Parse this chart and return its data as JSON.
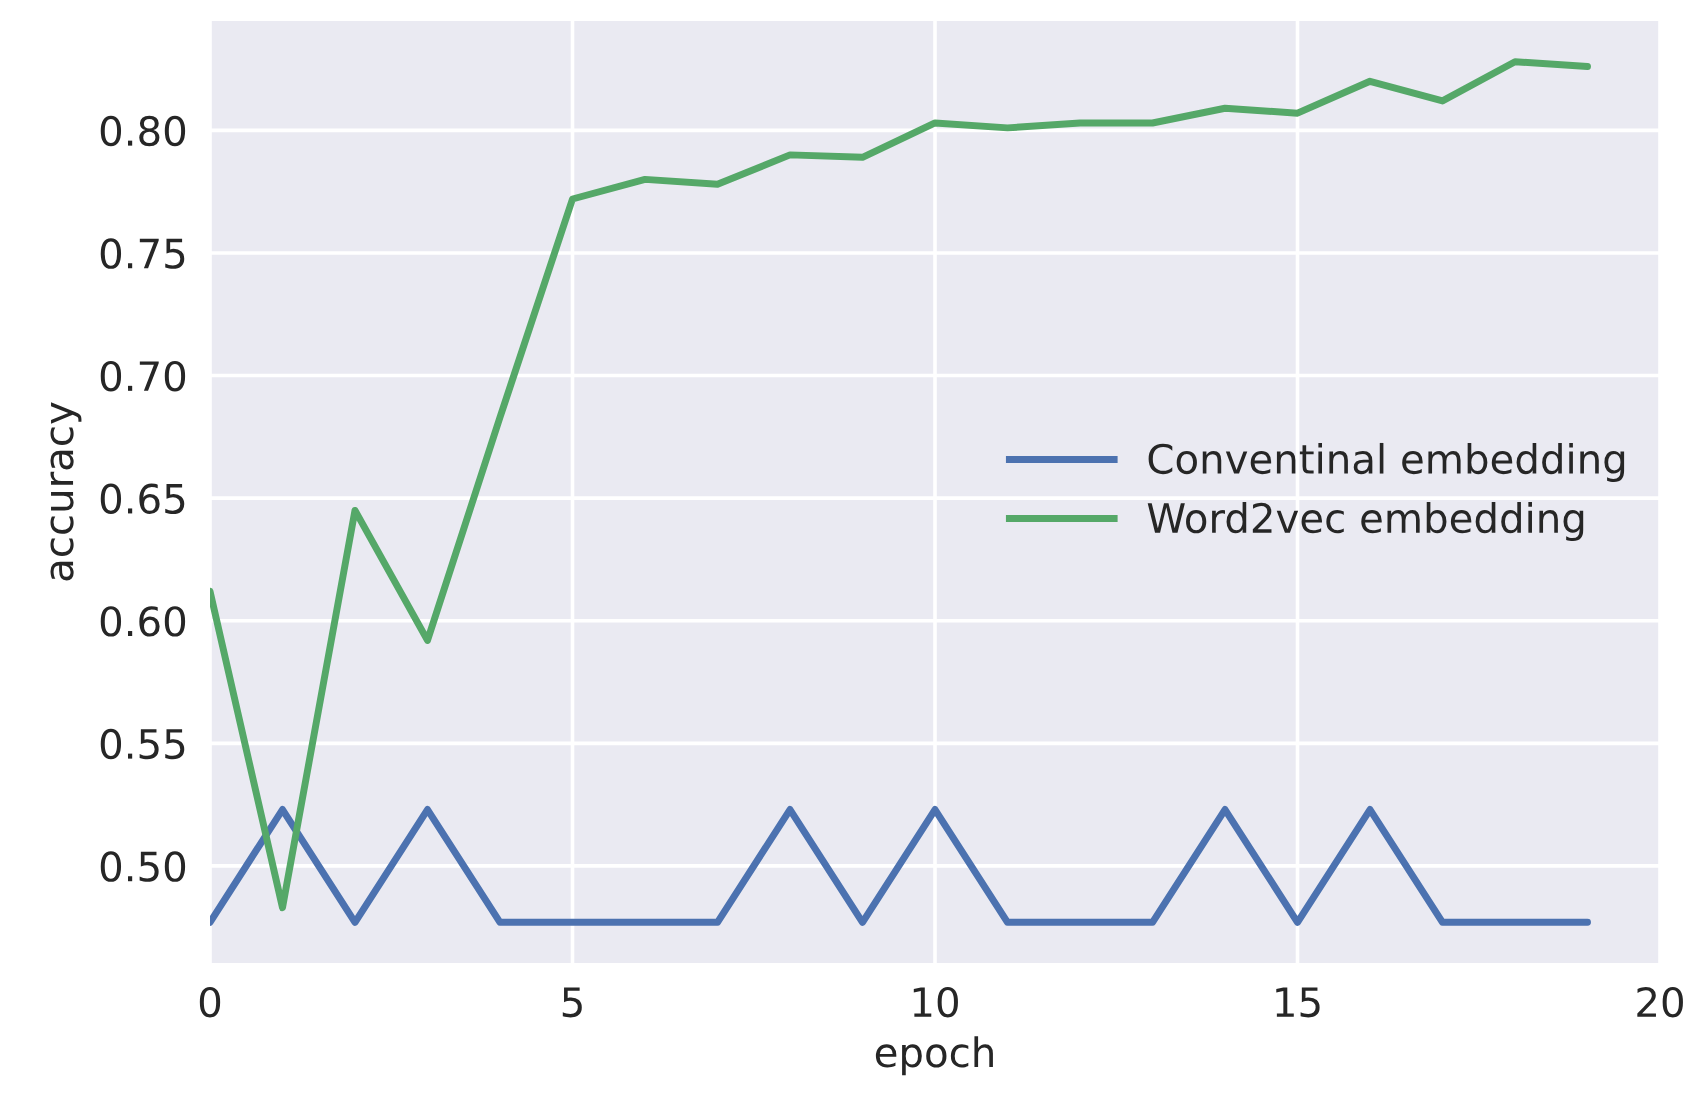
{
  "chart_data": {
    "type": "line",
    "xlabel": "epoch",
    "ylabel": "accuracy",
    "x": [
      0,
      1,
      2,
      3,
      4,
      5,
      6,
      7,
      8,
      9,
      10,
      11,
      12,
      13,
      14,
      15,
      16,
      17,
      18,
      19
    ],
    "series": [
      {
        "name": "Conventinal embedding",
        "color": "#4c72b0",
        "values": [
          0.477,
          0.523,
          0.477,
          0.523,
          0.477,
          0.477,
          0.477,
          0.477,
          0.523,
          0.477,
          0.523,
          0.477,
          0.477,
          0.477,
          0.523,
          0.477,
          0.523,
          0.477,
          0.477,
          0.477
        ]
      },
      {
        "name": "Word2vec embedding",
        "color": "#55a868",
        "values": [
          0.612,
          0.483,
          0.645,
          0.592,
          0.683,
          0.772,
          0.78,
          0.778,
          0.79,
          0.789,
          0.803,
          0.801,
          0.803,
          0.803,
          0.809,
          0.807,
          0.82,
          0.812,
          0.828,
          0.826
        ]
      }
    ],
    "xlim": [
      0,
      20
    ],
    "xticks": [
      0,
      5,
      10,
      15,
      20
    ],
    "ylim": [
      0.46,
      0.845
    ],
    "yticks": [
      {
        "value": 0.5,
        "label": "0.50"
      },
      {
        "value": 0.55,
        "label": "0.55"
      },
      {
        "value": 0.6,
        "label": "0.60"
      },
      {
        "value": 0.65,
        "label": "0.65"
      },
      {
        "value": 0.7,
        "label": "0.70"
      },
      {
        "value": 0.75,
        "label": "0.75"
      },
      {
        "value": 0.8,
        "label": "0.80"
      }
    ],
    "grid": true,
    "legend": "center right",
    "marker": "none",
    "line_style": "solid"
  }
}
